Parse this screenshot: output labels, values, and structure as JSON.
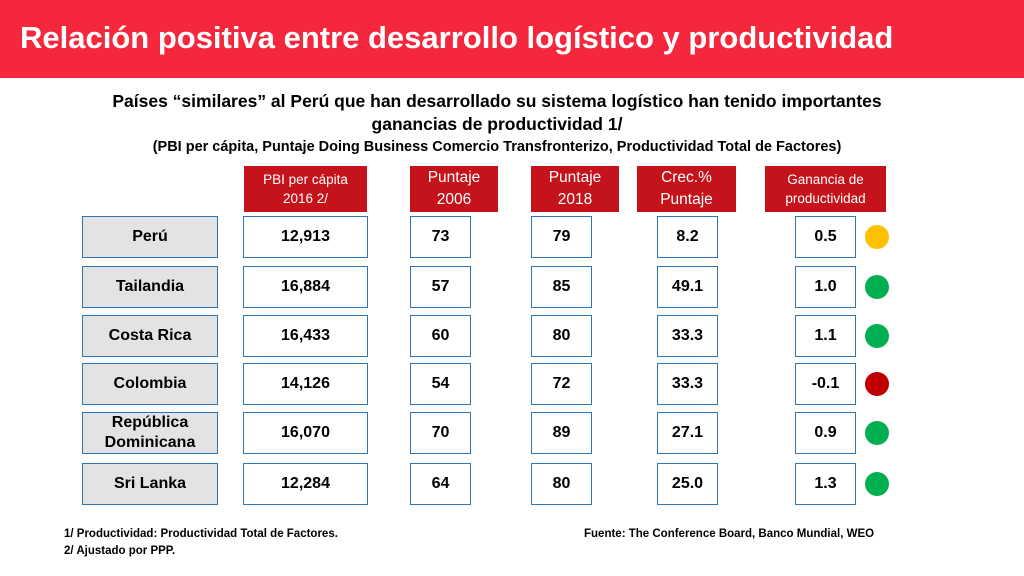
{
  "title": "Relación positiva entre desarrollo logístico y productividad",
  "subtitle_line1": "Países “similares” al Perú que han desarrollado su sistema logístico han tenido importantes",
  "subtitle_line2": "ganancias de productividad 1/",
  "subtitle_note": "(PBI per cápita, Puntaje Doing Business Comercio Transfronterizo, Productividad Total de Factores)",
  "headers": [
    "PBI per cápita\n2016 2/",
    "Puntaje\n2006",
    "Puntaje\n2018",
    "Crec.%\nPuntaje",
    "Ganancia de\nproductividad"
  ],
  "colors": {
    "yellow": "#ffc000",
    "green": "#00b050",
    "red": "#c00000"
  },
  "rows": [
    {
      "country": "Perú",
      "pbi": "12,913",
      "p2006": "73",
      "p2018": "79",
      "crec": "8.2",
      "ganancia": "0.5",
      "status": "yellow"
    },
    {
      "country": "Tailandia",
      "pbi": "16,884",
      "p2006": "57",
      "p2018": "85",
      "crec": "49.1",
      "ganancia": "1.0",
      "status": "green"
    },
    {
      "country": "Costa Rica",
      "pbi": "16,433",
      "p2006": "60",
      "p2018": "80",
      "crec": "33.3",
      "ganancia": "1.1",
      "status": "green"
    },
    {
      "country": "Colombia",
      "pbi": "14,126",
      "p2006": "54",
      "p2018": "72",
      "crec": "33.3",
      "ganancia": "-0.1",
      "status": "red"
    },
    {
      "country": "República\nDominicana",
      "pbi": "16,070",
      "p2006": "70",
      "p2018": "89",
      "crec": "27.1",
      "ganancia": "0.9",
      "status": "green"
    },
    {
      "country": "Sri Lanka",
      "pbi": "12,284",
      "p2006": "64",
      "p2018": "80",
      "crec": "25.0",
      "ganancia": "1.3",
      "status": "green"
    }
  ],
  "footnote1": "1/ Productividad: Productividad Total de Factores.",
  "footnote2": "2/ Ajustado por PPP.",
  "source": "Fuente: The Conference Board, Banco Mundial, WEO"
}
